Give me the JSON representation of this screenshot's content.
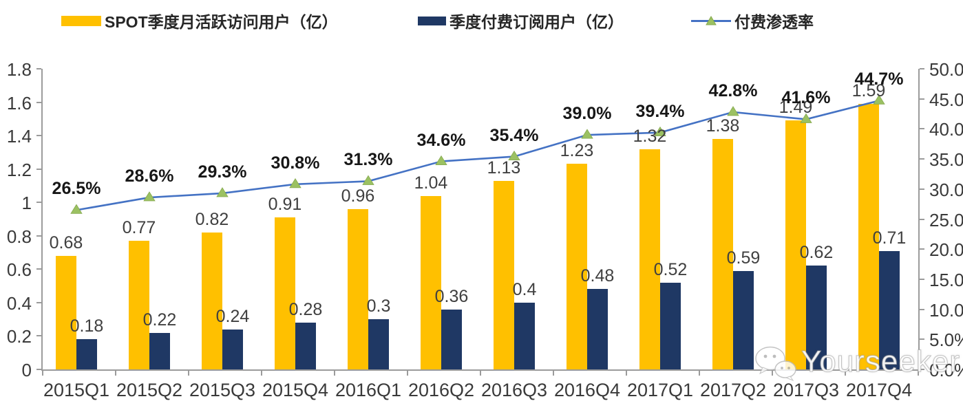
{
  "legend": {
    "items": [
      {
        "label": "SPOT季度月活跃访问用户（亿）",
        "swatch": "bar",
        "color": "#FFC000"
      },
      {
        "label": "季度付费订阅用户（亿）",
        "swatch": "bar",
        "color": "#1F3864"
      },
      {
        "label": "付费渗透率",
        "swatch": "line-marker",
        "color": "#4472C4",
        "marker_color": "#9BC162"
      }
    ]
  },
  "watermark": {
    "text": "Yourseeker",
    "icon": "wechat-icon"
  },
  "chart_data": {
    "type": "combo-bar-line",
    "categories": [
      "2015Q1",
      "2015Q2",
      "2015Q3",
      "2015Q4",
      "2016Q1",
      "2016Q2",
      "2016Q3",
      "2016Q4",
      "2017Q1",
      "2017Q2",
      "2017Q3",
      "2017Q4"
    ],
    "series": [
      {
        "name": "SPOT季度月活跃访问用户（亿）",
        "type": "bar",
        "axis": "left",
        "color": "#FFC000",
        "values": [
          0.68,
          0.77,
          0.82,
          0.91,
          0.96,
          1.04,
          1.13,
          1.23,
          1.32,
          1.38,
          1.49,
          1.59
        ],
        "labels": [
          "0.68",
          "0.77",
          "0.82",
          "0.91",
          "0.96",
          "1.04",
          "1.13",
          "1.23",
          "1.32",
          "1.38",
          "1.49",
          "1.59"
        ]
      },
      {
        "name": "季度付费订阅用户（亿）",
        "type": "bar",
        "axis": "left",
        "color": "#1F3864",
        "values": [
          0.18,
          0.22,
          0.24,
          0.28,
          0.3,
          0.36,
          0.4,
          0.48,
          0.52,
          0.59,
          0.62,
          0.71
        ],
        "labels": [
          "0.18",
          "0.22",
          "0.24",
          "0.28",
          "0.3",
          "0.36",
          "0.4",
          "0.48",
          "0.52",
          "0.59",
          "0.62",
          "0.71"
        ]
      },
      {
        "name": "付费渗透率",
        "type": "line",
        "axis": "right",
        "color": "#4472C4",
        "marker": "triangle",
        "marker_color": "#9BC162",
        "values": [
          26.5,
          28.6,
          29.3,
          30.8,
          31.3,
          34.6,
          35.4,
          39.0,
          39.4,
          42.8,
          41.6,
          44.7
        ],
        "labels": [
          "26.5%",
          "28.6%",
          "29.3%",
          "30.8%",
          "31.3%",
          "34.6%",
          "35.4%",
          "39.0%",
          "39.4%",
          "42.8%",
          "41.6%",
          "44.7%"
        ]
      }
    ],
    "left_axis": {
      "min": 0,
      "max": 1.8,
      "step": 0.2,
      "tick_labels": [
        "0",
        "0.2",
        "0.4",
        "0.6",
        "0.8",
        "1",
        "1.2",
        "1.4",
        "1.6",
        "1.8"
      ]
    },
    "right_axis": {
      "min": 0,
      "max": 50,
      "step": 5,
      "tick_labels": [
        "0.0%",
        "5.0%",
        "10.0%",
        "15.0%",
        "20.0%",
        "25.0%",
        "30.0%",
        "35.0%",
        "40.0%",
        "45.0%",
        "50.0%"
      ]
    },
    "grid": false,
    "legend_position": "top"
  }
}
